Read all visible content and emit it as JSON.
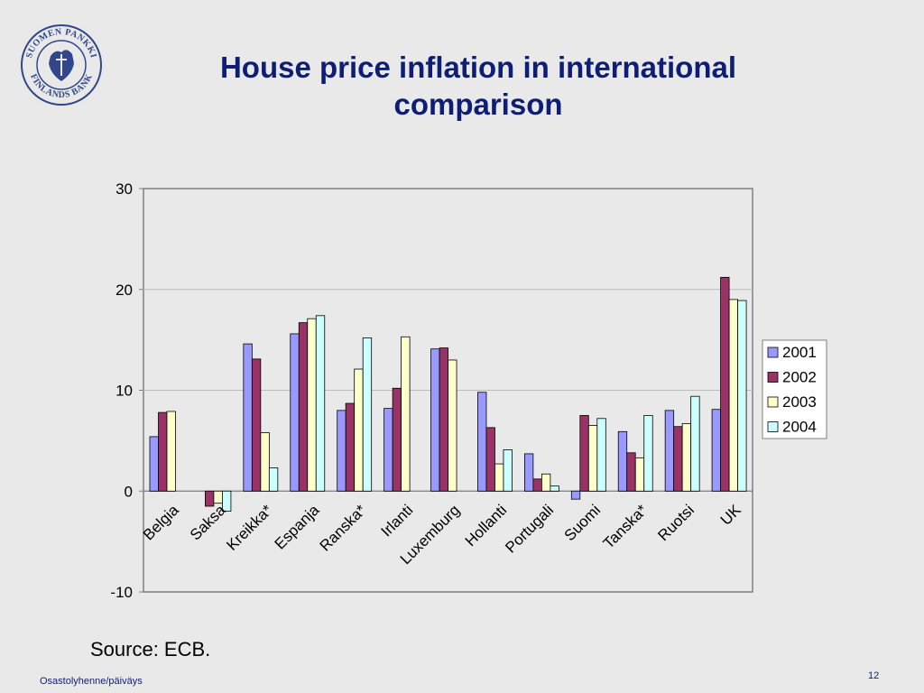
{
  "slide": {
    "title_line1": "House price inflation in international",
    "title_line2": "comparison",
    "source": "Source: ECB.",
    "footer": "Osastolyhenne/päiväys",
    "page_number": "12",
    "logo_text": "SUOMEN PANKKI FINLANDS BANK"
  },
  "colors": {
    "title": "#0e1e74",
    "background": "#e9e9e9",
    "series": [
      "#9999ff",
      "#993366",
      "#ffffcc",
      "#ccffff"
    ]
  },
  "chart_data": {
    "type": "bar",
    "categories": [
      "Belgia",
      "Saksa",
      "Kreikka*",
      "Espanja",
      "Ranska*",
      "Irlanti",
      "Luxemburg",
      "Hollanti",
      "Portugali",
      "Suomi",
      "Tanska*",
      "Ruotsi",
      "UK"
    ],
    "series": [
      {
        "name": "2001",
        "values": [
          5.4,
          null,
          14.6,
          15.6,
          8.0,
          8.2,
          14.1,
          9.8,
          3.7,
          -0.8,
          5.9,
          8.0,
          8.1
        ]
      },
      {
        "name": "2002",
        "values": [
          7.8,
          -1.5,
          13.1,
          16.7,
          8.7,
          10.2,
          14.2,
          6.3,
          1.2,
          7.5,
          3.8,
          6.4,
          21.2
        ]
      },
      {
        "name": "2003",
        "values": [
          7.9,
          -1.2,
          5.8,
          17.1,
          12.1,
          15.3,
          13.0,
          2.7,
          1.7,
          6.5,
          3.3,
          6.7,
          19.0
        ]
      },
      {
        "name": "2004",
        "values": [
          null,
          -2.0,
          2.3,
          17.4,
          15.2,
          null,
          null,
          4.1,
          0.5,
          7.2,
          7.5,
          9.4,
          18.9
        ]
      }
    ],
    "title": "",
    "xlabel": "",
    "ylabel": "",
    "ylim": [
      -10,
      30
    ],
    "yticks": [
      -10,
      0,
      10,
      20,
      30
    ],
    "grid": true,
    "legend": "right"
  }
}
